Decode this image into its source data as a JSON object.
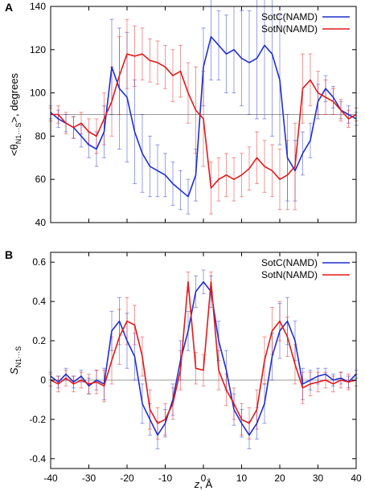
{
  "colors": {
    "SotC": "#1f2fd0",
    "SotN": "#e01a1a",
    "reference": "#9a9a9a",
    "frame": "#000000"
  },
  "chart_data": [
    {
      "type": "line",
      "panel_label": "A",
      "title": "",
      "xlabel": "",
      "ylabel_parts": {
        "main": "<θ",
        "sub": "N1···S",
        "tail": ">, degrees"
      },
      "xlim": [
        -40,
        40
      ],
      "ylim": [
        40,
        140
      ],
      "xticks": [
        -40,
        -30,
        -20,
        -10,
        0,
        10,
        20,
        30,
        40
      ],
      "yticks": [
        40,
        60,
        80,
        100,
        120,
        140
      ],
      "show_xtick_labels": false,
      "reference_y": 90,
      "legend_position": "top-right",
      "x": [
        -40,
        -38,
        -36,
        -34,
        -32,
        -30,
        -28,
        -26,
        -24,
        -22,
        -20,
        -18,
        -16,
        -14,
        -12,
        -10,
        -8,
        -6,
        -4,
        -2,
        0,
        2,
        4,
        6,
        8,
        10,
        12,
        14,
        16,
        18,
        20,
        22,
        24,
        26,
        28,
        30,
        32,
        34,
        36,
        38,
        40
      ],
      "series": [
        {
          "name": "SotC(NAMD)",
          "color_key": "SotC",
          "values": [
            91,
            88,
            86,
            84,
            80,
            76,
            74,
            82,
            112,
            102,
            98,
            82,
            72,
            66,
            64,
            62,
            58,
            55,
            52,
            62,
            112,
            126,
            122,
            118,
            120,
            116,
            114,
            116,
            122,
            118,
            106,
            70,
            64,
            72,
            78,
            96,
            102,
            98,
            92,
            90,
            88
          ],
          "errors": [
            3,
            4,
            4,
            5,
            5,
            6,
            8,
            12,
            22,
            28,
            30,
            24,
            18,
            14,
            12,
            10,
            10,
            9,
            8,
            12,
            18,
            20,
            16,
            18,
            20,
            22,
            24,
            28,
            34,
            38,
            30,
            20,
            14,
            10,
            8,
            8,
            6,
            5,
            4,
            4,
            3
          ]
        },
        {
          "name": "SotN(NAMD)",
          "color_key": "SotN",
          "values": [
            90,
            90,
            86,
            84,
            86,
            82,
            80,
            88,
            96,
            108,
            118,
            117,
            118,
            115,
            114,
            112,
            108,
            110,
            100,
            92,
            88,
            56,
            60,
            62,
            60,
            62,
            65,
            70,
            66,
            64,
            60,
            62,
            66,
            102,
            106,
            100,
            98,
            96,
            92,
            88,
            90
          ],
          "errors": [
            3,
            4,
            5,
            5,
            5,
            6,
            8,
            12,
            16,
            18,
            16,
            14,
            12,
            10,
            10,
            10,
            12,
            12,
            14,
            20,
            22,
            12,
            10,
            10,
            10,
            10,
            10,
            12,
            12,
            12,
            14,
            16,
            20,
            16,
            12,
            10,
            8,
            6,
            5,
            4,
            3
          ]
        }
      ]
    },
    {
      "type": "line",
      "panel_label": "B",
      "title": "",
      "xlabel_parts": {
        "var": "z",
        "unit": ",  Å"
      },
      "ylabel_parts": {
        "main": "S",
        "sub": "N1···S"
      },
      "xlim": [
        -40,
        40
      ],
      "ylim": [
        -0.45,
        0.65
      ],
      "xticks": [
        -40,
        -30,
        -20,
        -10,
        0,
        10,
        20,
        30,
        40
      ],
      "yticks": [
        -0.4,
        -0.2,
        0,
        0.2,
        0.4,
        0.6
      ],
      "ytick_labels": [
        "-0.4",
        "-0.2",
        "0",
        "0.2",
        "0.4",
        "0.6"
      ],
      "show_xtick_labels": true,
      "reference_y": 0,
      "legend_position": "top-right",
      "x": [
        -40,
        -38,
        -36,
        -34,
        -32,
        -30,
        -28,
        -26,
        -24,
        -22,
        -20,
        -18,
        -16,
        -14,
        -12,
        -10,
        -8,
        -6,
        -4,
        -2,
        0,
        2,
        4,
        6,
        8,
        10,
        12,
        14,
        16,
        18,
        20,
        22,
        24,
        26,
        28,
        30,
        32,
        34,
        36,
        38,
        40
      ],
      "series": [
        {
          "name": "SotC(NAMD)",
          "color_key": "SotC",
          "values": [
            0.02,
            -0.01,
            0.03,
            -0.01,
            0.02,
            -0.03,
            0.0,
            -0.02,
            0.25,
            0.3,
            0.2,
            0.12,
            -0.12,
            -0.2,
            -0.28,
            -0.22,
            -0.1,
            0.1,
            0.25,
            0.45,
            0.5,
            0.45,
            0.2,
            0.05,
            -0.15,
            -0.22,
            -0.28,
            -0.22,
            -0.12,
            0.12,
            0.25,
            0.3,
            0.2,
            -0.02,
            0.0,
            0.02,
            0.03,
            0.0,
            0.01,
            -0.01,
            0.03
          ],
          "errors": [
            0.02,
            0.03,
            0.03,
            0.03,
            0.03,
            0.04,
            0.05,
            0.08,
            0.1,
            0.12,
            0.14,
            0.12,
            0.1,
            0.08,
            0.07,
            0.07,
            0.08,
            0.1,
            0.1,
            0.08,
            0.06,
            0.08,
            0.1,
            0.1,
            0.08,
            0.07,
            0.07,
            0.08,
            0.1,
            0.12,
            0.14,
            0.12,
            0.1,
            0.08,
            0.05,
            0.04,
            0.03,
            0.03,
            0.03,
            0.03,
            0.02
          ]
        },
        {
          "name": "SotN(NAMD)",
          "color_key": "SotN",
          "values": [
            0.0,
            -0.02,
            0.01,
            -0.02,
            0.0,
            -0.02,
            -0.01,
            -0.03,
            0.1,
            0.22,
            0.3,
            0.28,
            0.12,
            -0.15,
            -0.22,
            -0.2,
            -0.12,
            0.05,
            0.5,
            0.06,
            0.05,
            0.5,
            0.05,
            -0.05,
            -0.12,
            -0.2,
            -0.22,
            -0.15,
            0.1,
            0.25,
            0.3,
            0.22,
            0.08,
            -0.04,
            -0.02,
            -0.01,
            0.0,
            -0.02,
            0.0,
            -0.01,
            0.0
          ],
          "errors": [
            0.03,
            0.04,
            0.04,
            0.04,
            0.04,
            0.05,
            0.06,
            0.08,
            0.12,
            0.14,
            0.12,
            0.1,
            0.1,
            0.1,
            0.08,
            0.08,
            0.08,
            0.1,
            0.05,
            0.08,
            0.08,
            0.05,
            0.1,
            0.08,
            0.08,
            0.08,
            0.08,
            0.1,
            0.12,
            0.12,
            0.1,
            0.1,
            0.1,
            0.08,
            0.06,
            0.05,
            0.04,
            0.04,
            0.04,
            0.04,
            0.03
          ]
        }
      ]
    }
  ]
}
